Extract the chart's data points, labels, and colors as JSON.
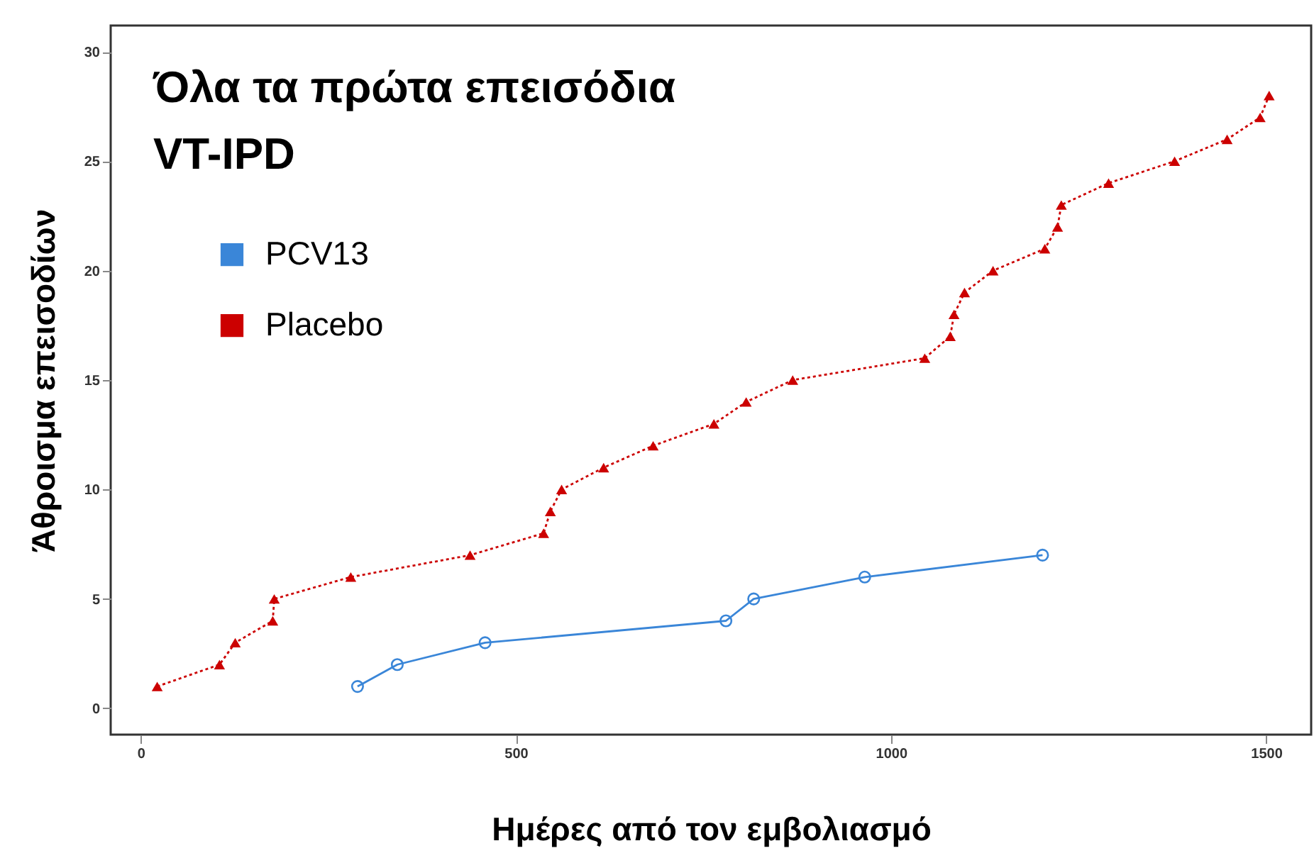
{
  "chart_data": {
    "type": "line",
    "title": "Όλα τα πρώτα επεισόδια\nVT-IPD",
    "xlabel": "Ημέρες από τον εμβολιασμό",
    "ylabel": "Άθροισμα επεισοδίων",
    "xlim": [
      -40,
      1560
    ],
    "xticks": [
      0,
      500,
      1000,
      1500
    ],
    "ylim": [
      -1.2,
      31.2
    ],
    "yticks": [
      0,
      5,
      10,
      15,
      20,
      25,
      30
    ],
    "grid": false,
    "legend": "top left",
    "series": [
      {
        "name": "PCV13",
        "color": "#3a86d8",
        "marker": "circle",
        "line_style": "solid",
        "x": [
          289,
          342,
          459,
          780,
          817,
          965,
          1202
        ],
        "values": [
          1,
          2,
          3,
          4,
          5,
          6,
          7
        ]
      },
      {
        "name": "Placebo",
        "color": "#cc0000",
        "marker": "triangle",
        "line_style": "dotted",
        "x": [
          22,
          105,
          126,
          176,
          178,
          280,
          439,
          537,
          546,
          561,
          617,
          683,
          764,
          807,
          869,
          1045,
          1079,
          1084,
          1098,
          1136,
          1205,
          1222,
          1227,
          1290,
          1378,
          1448,
          1492,
          1504
        ],
        "values": [
          1,
          2,
          3,
          4,
          5,
          6,
          7,
          8,
          9,
          10,
          11,
          12,
          13,
          14,
          15,
          16,
          17,
          18,
          19,
          20,
          21,
          22,
          23,
          24,
          25,
          26,
          27,
          28
        ]
      }
    ]
  }
}
